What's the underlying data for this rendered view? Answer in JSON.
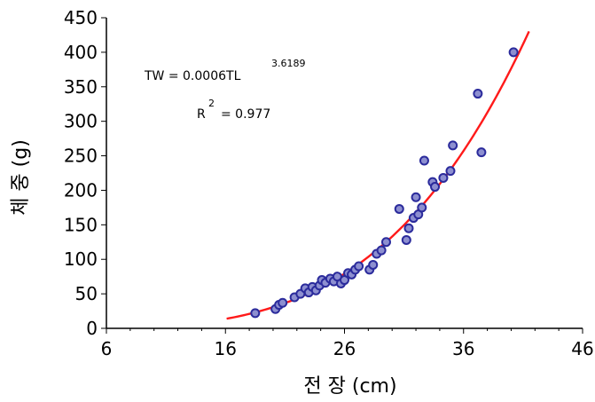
{
  "chart_data": {
    "type": "scatter",
    "xlabel": "전 장 (cm)",
    "ylabel": "체 중 (g)",
    "xlim": [
      6,
      46
    ],
    "ylim": [
      0,
      450
    ],
    "xticks": [
      "6",
      "16",
      "26",
      "36",
      "46"
    ],
    "yticks": [
      "0",
      "50",
      "100",
      "150",
      "200",
      "250",
      "300",
      "350",
      "400",
      "450"
    ],
    "annotation": {
      "equation_main": "TW = 0.0006TL",
      "equation_exponent": "3.6189",
      "r2_label": "R",
      "r2_exponent": "2",
      "r2_value": "= 0.977"
    },
    "fit": {
      "a": 0.0006,
      "b": 3.6189,
      "x_start": 16.1,
      "x_end": 41.5,
      "color": "#ff1a1a"
    },
    "marker_color": "#2b2b9c",
    "marker_fill": "#8d8fd0",
    "points": [
      {
        "x": 18.5,
        "y": 22
      },
      {
        "x": 20.2,
        "y": 28
      },
      {
        "x": 20.5,
        "y": 34
      },
      {
        "x": 20.8,
        "y": 37
      },
      {
        "x": 21.8,
        "y": 45
      },
      {
        "x": 22.3,
        "y": 50
      },
      {
        "x": 22.7,
        "y": 58
      },
      {
        "x": 23.0,
        "y": 52
      },
      {
        "x": 23.3,
        "y": 60
      },
      {
        "x": 23.6,
        "y": 55
      },
      {
        "x": 23.9,
        "y": 62
      },
      {
        "x": 24.1,
        "y": 70
      },
      {
        "x": 24.4,
        "y": 66
      },
      {
        "x": 24.8,
        "y": 72
      },
      {
        "x": 25.1,
        "y": 68
      },
      {
        "x": 25.4,
        "y": 75
      },
      {
        "x": 25.7,
        "y": 65
      },
      {
        "x": 26.0,
        "y": 70
      },
      {
        "x": 26.3,
        "y": 80
      },
      {
        "x": 26.6,
        "y": 78
      },
      {
        "x": 26.9,
        "y": 85
      },
      {
        "x": 27.2,
        "y": 90
      },
      {
        "x": 28.1,
        "y": 85
      },
      {
        "x": 28.4,
        "y": 92
      },
      {
        "x": 28.7,
        "y": 108
      },
      {
        "x": 29.1,
        "y": 113
      },
      {
        "x": 29.5,
        "y": 125
      },
      {
        "x": 30.6,
        "y": 173
      },
      {
        "x": 31.2,
        "y": 128
      },
      {
        "x": 31.4,
        "y": 145
      },
      {
        "x": 31.8,
        "y": 160
      },
      {
        "x": 32.0,
        "y": 190
      },
      {
        "x": 32.2,
        "y": 165
      },
      {
        "x": 32.5,
        "y": 175
      },
      {
        "x": 32.7,
        "y": 243
      },
      {
        "x": 33.4,
        "y": 212
      },
      {
        "x": 33.6,
        "y": 205
      },
      {
        "x": 34.3,
        "y": 218
      },
      {
        "x": 34.9,
        "y": 228
      },
      {
        "x": 35.1,
        "y": 265
      },
      {
        "x": 37.2,
        "y": 340
      },
      {
        "x": 37.5,
        "y": 255
      },
      {
        "x": 40.2,
        "y": 400
      }
    ]
  }
}
